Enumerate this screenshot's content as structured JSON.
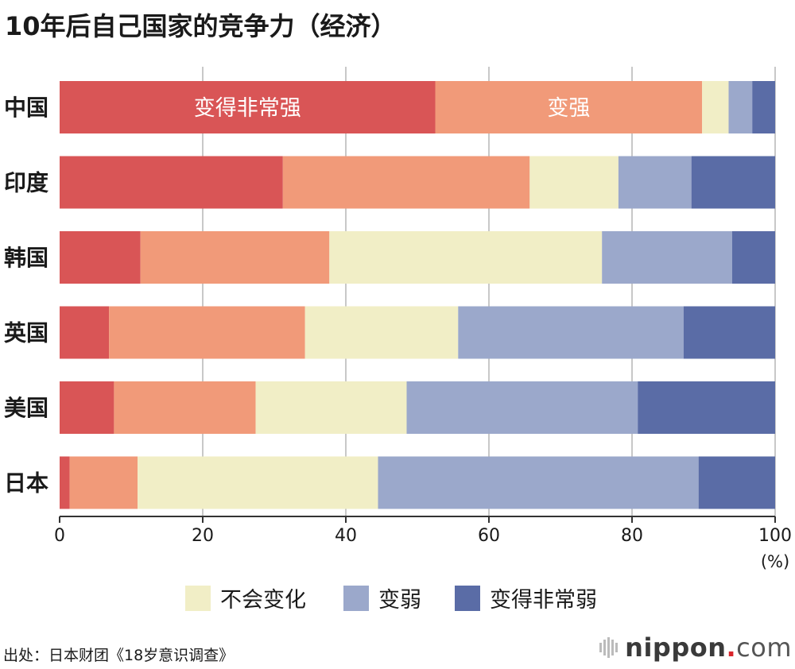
{
  "chart_data": {
    "type": "bar",
    "orientation": "horizontal",
    "stacked": true,
    "title": "10年后自己国家的竞争力（经济）",
    "categories": [
      "中国",
      "印度",
      "韩国",
      "英国",
      "美国",
      "日本"
    ],
    "series": [
      {
        "name": "变得非常强",
        "color": "#d95556",
        "values": [
          52.5,
          31.2,
          11.3,
          6.9,
          7.6,
          1.4
        ]
      },
      {
        "name": "变强",
        "color": "#f19a79",
        "values": [
          37.3,
          34.5,
          26.4,
          27.4,
          19.8,
          9.5
        ]
      },
      {
        "name": "不会变化",
        "color": "#f1eec6",
        "values": [
          3.7,
          12.4,
          38.1,
          21.4,
          21.1,
          33.6
        ]
      },
      {
        "name": "变弱",
        "color": "#9ba8cb",
        "values": [
          3.3,
          10.2,
          18.2,
          31.5,
          32.3,
          44.8
        ]
      },
      {
        "name": "变得非常弱",
        "color": "#5a6ca6",
        "values": [
          3.2,
          11.7,
          6.0,
          12.8,
          19.2,
          10.7
        ]
      }
    ],
    "in_bar_labels": [
      {
        "category": "中国",
        "series": "变得非常强",
        "text": "变得非常强"
      },
      {
        "category": "中国",
        "series": "变强",
        "text": "变强"
      }
    ],
    "xlim": [
      0,
      100
    ],
    "xticks": [
      0,
      20,
      40,
      60,
      80,
      100
    ],
    "xunit": "(%)",
    "grid": true,
    "legend_placement": "bottom",
    "legend_series": [
      "不会变化",
      "变弱",
      "变得非常弱"
    ]
  },
  "legend": {
    "items": [
      {
        "label": "不会变化",
        "color": "#f1eec6"
      },
      {
        "label": "变弱",
        "color": "#9ba8cb"
      },
      {
        "label": "变得非常弱",
        "color": "#5a6ca6"
      }
    ]
  },
  "footer": {
    "source": "出处：日本财团《18岁意识调查》",
    "logo_main": "nippon",
    "logo_dot": ".",
    "logo_com": "com"
  }
}
